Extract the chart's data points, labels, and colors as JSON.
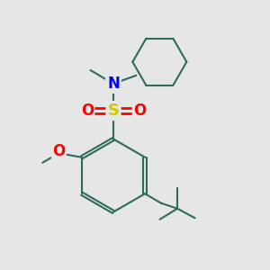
{
  "background_color": "#e6e6e6",
  "bond_color": "#2d6b5e",
  "atom_colors": {
    "N": "#0000ff",
    "O_sulfonyl": "#ff0000",
    "S": "#cccc00",
    "O_methoxy": "#ff0000",
    "C": "#2d6b5e"
  },
  "figsize": [
    3.0,
    3.0
  ],
  "dpi": 100,
  "xlim": [
    0,
    10
  ],
  "ylim": [
    0,
    10
  ]
}
